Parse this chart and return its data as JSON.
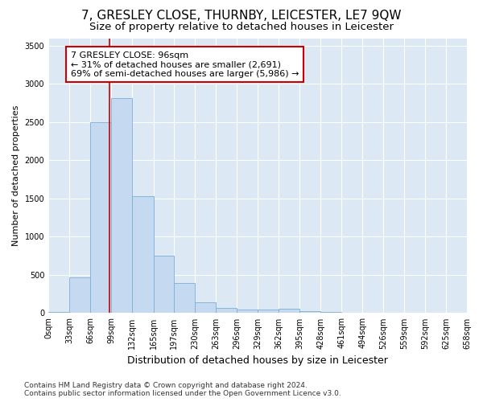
{
  "title": "7, GRESLEY CLOSE, THURNBY, LEICESTER, LE7 9QW",
  "subtitle": "Size of property relative to detached houses in Leicester",
  "xlabel": "Distribution of detached houses by size in Leicester",
  "ylabel": "Number of detached properties",
  "bin_edges": [
    0,
    33,
    66,
    99,
    132,
    165,
    197,
    230,
    263,
    296,
    329,
    362,
    395,
    428,
    461,
    494,
    526,
    559,
    592,
    625,
    658
  ],
  "bar_heights": [
    20,
    470,
    2500,
    2820,
    1530,
    750,
    390,
    140,
    70,
    50,
    50,
    60,
    30,
    10,
    0,
    0,
    0,
    0,
    0,
    0
  ],
  "bar_color": "#c5d9f0",
  "bar_edge_color": "#7bafd4",
  "property_size": 96,
  "vline_color": "#cc0000",
  "annotation_text": "7 GRESLEY CLOSE: 96sqm\n← 31% of detached houses are smaller (2,691)\n69% of semi-detached houses are larger (5,986) →",
  "annotation_box_color": "#ffffff",
  "annotation_box_edge": "#cc0000",
  "footnote1": "Contains HM Land Registry data © Crown copyright and database right 2024.",
  "footnote2": "Contains public sector information licensed under the Open Government Licence v3.0.",
  "ylim": [
    0,
    3600
  ],
  "background_color": "#dce9f5",
  "grid_color": "#ffffff",
  "title_fontsize": 11,
  "subtitle_fontsize": 9.5,
  "ylabel_fontsize": 8,
  "xlabel_fontsize": 9,
  "tick_fontsize": 7,
  "annotation_fontsize": 8,
  "footnote_fontsize": 6.5
}
